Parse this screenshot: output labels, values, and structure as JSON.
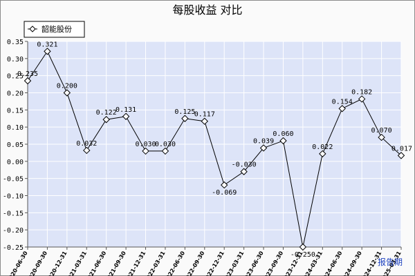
{
  "chart_data": {
    "type": "line",
    "title": "每股收益 对比",
    "xlabel": "报告期",
    "ylabel": "",
    "ylim": [
      -0.25,
      0.35
    ],
    "yticks": [
      "0.35",
      "0.30",
      "0.25",
      "0.20",
      "0.15",
      "0.10",
      "0.05",
      "0.00",
      "-0.05",
      "-0.10",
      "-0.15",
      "-0.20",
      "-0.25"
    ],
    "grid": true,
    "legend_position": "top-left",
    "categories": [
      "2020-06-30",
      "2020-09-30",
      "2020-12-31",
      "2021-03-31",
      "2021-06-30",
      "2021-09-30",
      "2021-12-31",
      "2022-03-31",
      "2022-06-30",
      "2022-09-30",
      "2022-12-31",
      "2023-03-31",
      "2023-06-30",
      "2023-09-30",
      "2023-12-31",
      "2024-03-31",
      "2024-06-30",
      "2024-09-30",
      "2024-12-31",
      "2025-03-31"
    ],
    "series": [
      {
        "name": "韶能股份",
        "values": [
          0.235,
          0.321,
          0.2,
          0.032,
          0.122,
          0.131,
          0.03,
          0.03,
          0.125,
          0.117,
          -0.069,
          -0.03,
          0.039,
          0.06,
          -0.25,
          0.022,
          0.154,
          0.182,
          0.07,
          0.017
        ],
        "labels": [
          "0.235",
          "0.321",
          "0.200",
          "0.032",
          "0.122",
          "0.131",
          "0.030",
          "0.030",
          "0.125",
          "0.117",
          "-0.069",
          "-0.030",
          "0.039",
          "0.060",
          "-0.250",
          "0.022",
          "0.154",
          "0.182",
          "0.070",
          "0.017"
        ]
      }
    ],
    "colors": {
      "plot_background": "#dde4f8",
      "grid": "#ffffff",
      "line": "#000000",
      "marker_fill": "#ffffff",
      "period_label": "#1a3fbf"
    }
  }
}
